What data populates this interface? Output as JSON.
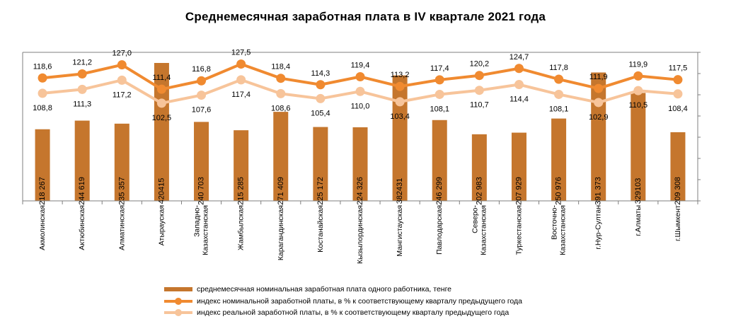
{
  "chart_data": {
    "type": "bar",
    "title": "Среднемесячная заработная плата в IV квартале 2021 года",
    "categories": [
      "Акмолинская",
      "Актюбинская",
      "Алматинская",
      "Атырауская",
      "Западно-\nКазахстанская",
      "Жамбылская",
      "Карагандинская",
      "Костанайская",
      "Кызылординская",
      "Мангистауская",
      "Павлодарская",
      "Северо-\nКазахстанская",
      "Туркестанская",
      "Восточно-\nКазахстанская",
      "г.Нур-Султан",
      "г.Алматы",
      "г.Шымкент"
    ],
    "bar_labels": [
      "218 267",
      "244 619",
      "235 357",
      "420415",
      "240 703",
      "215 285",
      "271 409",
      "225 172",
      "224 326",
      "382431",
      "246 299",
      "202 983",
      "207 929",
      "250 976",
      "391 373",
      "329103",
      "209 308"
    ],
    "nominal_labels": [
      "118,6",
      "121,2",
      "127,0",
      "111,4",
      "116,8",
      "127,5",
      "118,4",
      "114,3",
      "119,4",
      "113,2",
      "117,4",
      "120,2",
      "124,7",
      "117,8",
      "111,9",
      "119,9",
      "117,5"
    ],
    "real_labels": [
      "108,8",
      "111,3",
      "117,2",
      "102,5",
      "107,6",
      "117,4",
      "108,6",
      "105,4",
      "110,0",
      "103,4",
      "108,1",
      "110,7",
      "114,4",
      "108,1",
      "102,9",
      "110,5",
      "108,4"
    ],
    "series": [
      {
        "name": "среднемесячная номинальная заработная плата одного работника, тенге",
        "type": "bar",
        "color": "#c5762d",
        "values": [
          218267,
          244619,
          235357,
          420415,
          240703,
          215285,
          271409,
          225172,
          224326,
          382431,
          246299,
          202983,
          207929,
          250976,
          391373,
          329103,
          209308
        ]
      },
      {
        "name": "индекс номинальной заработной платы, в % к соответствующему кварталу предыдущего года",
        "type": "line",
        "color": "#f08a30",
        "values": [
          118.6,
          121.2,
          127.0,
          111.4,
          116.8,
          127.5,
          118.4,
          114.3,
          119.4,
          113.2,
          117.4,
          120.2,
          124.7,
          117.8,
          111.9,
          119.9,
          117.5
        ]
      },
      {
        "name": "индекс реальной заработной платы, в % к соответствующему кварталу предыдущего года",
        "type": "line",
        "color": "#f7c49a",
        "values": [
          108.8,
          111.3,
          117.2,
          102.5,
          107.6,
          117.4,
          108.6,
          105.4,
          110.0,
          103.4,
          108.1,
          110.7,
          114.4,
          108.1,
          102.9,
          110.5,
          108.4
        ]
      }
    ],
    "ylim_bars": [
      0,
      420415
    ],
    "ylim_index": [
      40,
      135
    ],
    "grid": false,
    "legend_position": "bottom"
  }
}
